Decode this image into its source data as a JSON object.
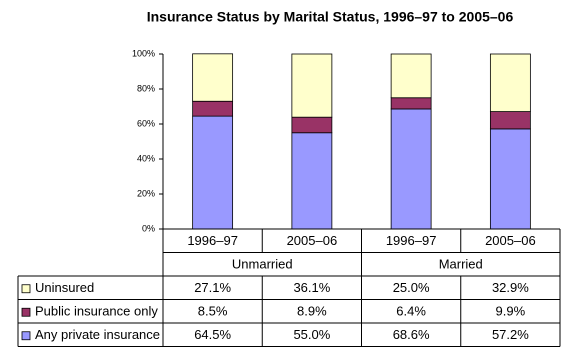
{
  "chart_data": {
    "type": "stacked_bar",
    "title": "Insurance Status by Marital Status, 1996–97 to 2005–06",
    "groups": [
      {
        "name": "Unmarried",
        "categories": [
          "1996–97",
          "2005–06"
        ]
      },
      {
        "name": "Married",
        "categories": [
          "1996–97",
          "2005–06"
        ]
      }
    ],
    "series": [
      {
        "name": "Any private insurance",
        "color": "#9999ff",
        "values": [
          64.5,
          55.0,
          68.6,
          57.2
        ],
        "value_labels": [
          "64.5%",
          "55.0%",
          "68.6%",
          "57.2%"
        ]
      },
      {
        "name": "Public insurance only",
        "color": "#993366",
        "values": [
          8.5,
          8.9,
          6.4,
          9.9
        ],
        "value_labels": [
          "8.5%",
          "8.9%",
          "6.4%",
          "9.9%"
        ]
      },
      {
        "name": "Uninsured",
        "color": "#ffffcc",
        "values": [
          27.1,
          36.1,
          25.0,
          32.9
        ],
        "value_labels": [
          "27.1%",
          "36.1%",
          "25.0%",
          "32.9%"
        ]
      }
    ],
    "ylim": [
      0,
      100
    ],
    "yticks": [
      {
        "value": 0,
        "label": "0%"
      },
      {
        "value": 20,
        "label": "20%"
      },
      {
        "value": 40,
        "label": "40%"
      },
      {
        "value": 60,
        "label": "60%"
      },
      {
        "value": 80,
        "label": "80%"
      },
      {
        "value": 100,
        "label": "100%"
      }
    ]
  }
}
